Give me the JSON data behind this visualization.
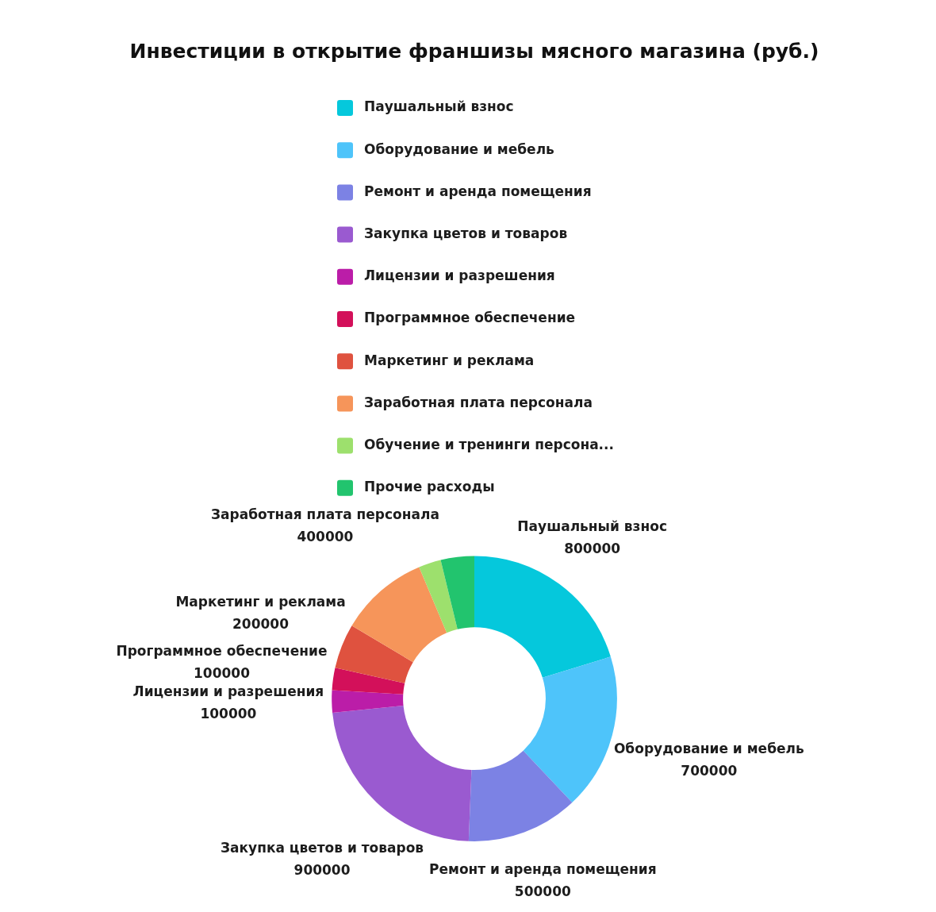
{
  "chart_data": {
    "type": "donut",
    "title": "Инвестиции в открытие франшизы мясного магазина (руб.)",
    "categories": [
      "Паушальный взнос",
      "Оборудование и мебель",
      "Ремонт и аренда помещения",
      "Закупка цветов и товаров",
      "Лицензии и разрешения",
      "Программное обеспечение",
      "Маркетинг и реклама",
      "Заработная плата персонала",
      "Обучение и тренинги персона...",
      "Прочие расходы"
    ],
    "values": [
      800000,
      700000,
      500000,
      900000,
      100000,
      100000,
      200000,
      400000,
      100000,
      150000
    ],
    "colors": [
      "#05c8dc",
      "#4ec4fa",
      "#7c82e4",
      "#9a5ad0",
      "#bb1da8",
      "#d3105a",
      "#df523f",
      "#f6955a",
      "#9de06d",
      "#22c46e"
    ],
    "value_labels": [
      "800000",
      "700000",
      "500000",
      "900000",
      "100000",
      "100000",
      "200000",
      "400000",
      null,
      null
    ],
    "legend": "top"
  }
}
